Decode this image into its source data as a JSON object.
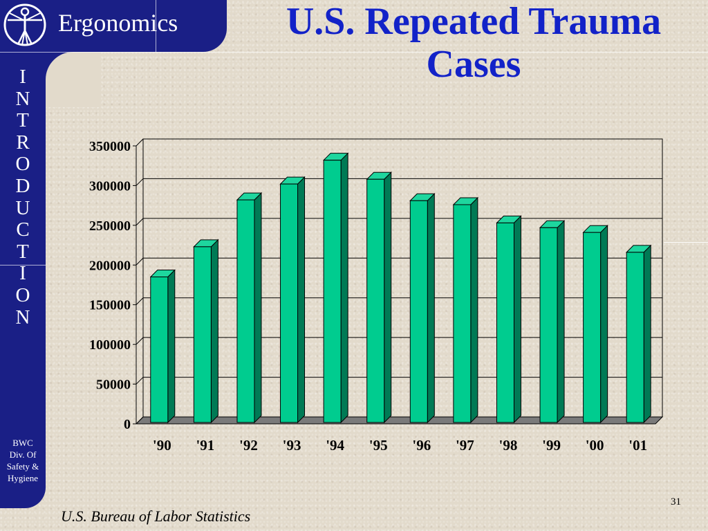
{
  "header": {
    "brand": "Ergonomics",
    "title_line1": "U.S. Repeated Trauma",
    "title_line2": "Cases"
  },
  "sidebar": {
    "letters": [
      "I",
      "N",
      "T",
      "R",
      "O",
      "D",
      "U",
      "C",
      "T",
      "I",
      "O",
      "N"
    ],
    "org_lines": [
      "BWC",
      "Div. Of",
      "Safety &",
      "Hygiene"
    ]
  },
  "colors": {
    "sidebar": "#1a1f86",
    "title": "#1222c8",
    "bar_front": "#00cc8f",
    "bar_side": "#007a55",
    "bar_top": "#1ed69e"
  },
  "chart_data": {
    "type": "bar",
    "categories": [
      "'90",
      "'91",
      "'92",
      "'93",
      "'94",
      "'95",
      "'96",
      "'97",
      "'98",
      "'99",
      "'00",
      "'01"
    ],
    "values": [
      185000,
      223000,
      282000,
      302000,
      332000,
      308000,
      281000,
      276000,
      253000,
      247000,
      241000,
      216000
    ],
    "title": "",
    "xlabel": "",
    "ylabel": "",
    "ylim": [
      0,
      350000
    ],
    "yticks": [
      "0",
      "50000",
      "100000",
      "150000",
      "200000",
      "250000",
      "300000",
      "350000"
    ],
    "grid": true,
    "legend": "none"
  },
  "footer": {
    "source": "U.S. Bureau of Labor Statistics",
    "page_number": "31"
  }
}
